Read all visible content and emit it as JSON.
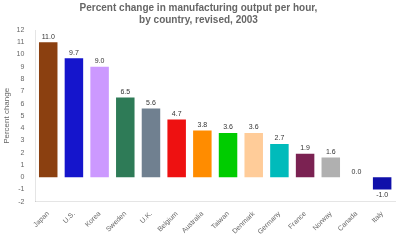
{
  "chart_data": {
    "type": "bar",
    "title": "Percent change in manufacturing output per hour,\nby country, revised, 2003",
    "ylabel": "Percent change",
    "categories": [
      "Japan",
      "U.S.",
      "Korea",
      "Sweden",
      "U.K.",
      "Belgium",
      "Australia",
      "Taiwan",
      "Denmark",
      "Germany",
      "France",
      "Norway",
      "Canada",
      "Italy"
    ],
    "values": [
      11.0,
      9.7,
      9.0,
      6.5,
      5.6,
      4.7,
      3.8,
      3.6,
      3.6,
      2.7,
      1.9,
      1.6,
      0.0,
      -1.0
    ],
    "value_labels": [
      "11.0",
      "9.7",
      "9.0",
      "6.5",
      "5.6",
      "4.7",
      "3.8",
      "3.6",
      "3.6",
      "2.7",
      "1.9",
      "1.6",
      "0.0",
      "-1.0"
    ],
    "colors": [
      "#8B4010",
      "#1515CC",
      "#CC99FF",
      "#2E7B57",
      "#708090",
      "#EE1111",
      "#FF8C00",
      "#00CC00",
      "#FFCC99",
      "#00BBBB",
      "#7B2252",
      "#B0B0B0",
      "#7799BB",
      "#1010AA"
    ],
    "ylim": [
      -2,
      12
    ],
    "yticks": [
      -2,
      -1,
      0,
      1,
      2,
      3,
      4,
      5,
      6,
      7,
      8,
      9,
      10,
      11,
      12
    ],
    "grid": false,
    "data_labels": true
  }
}
